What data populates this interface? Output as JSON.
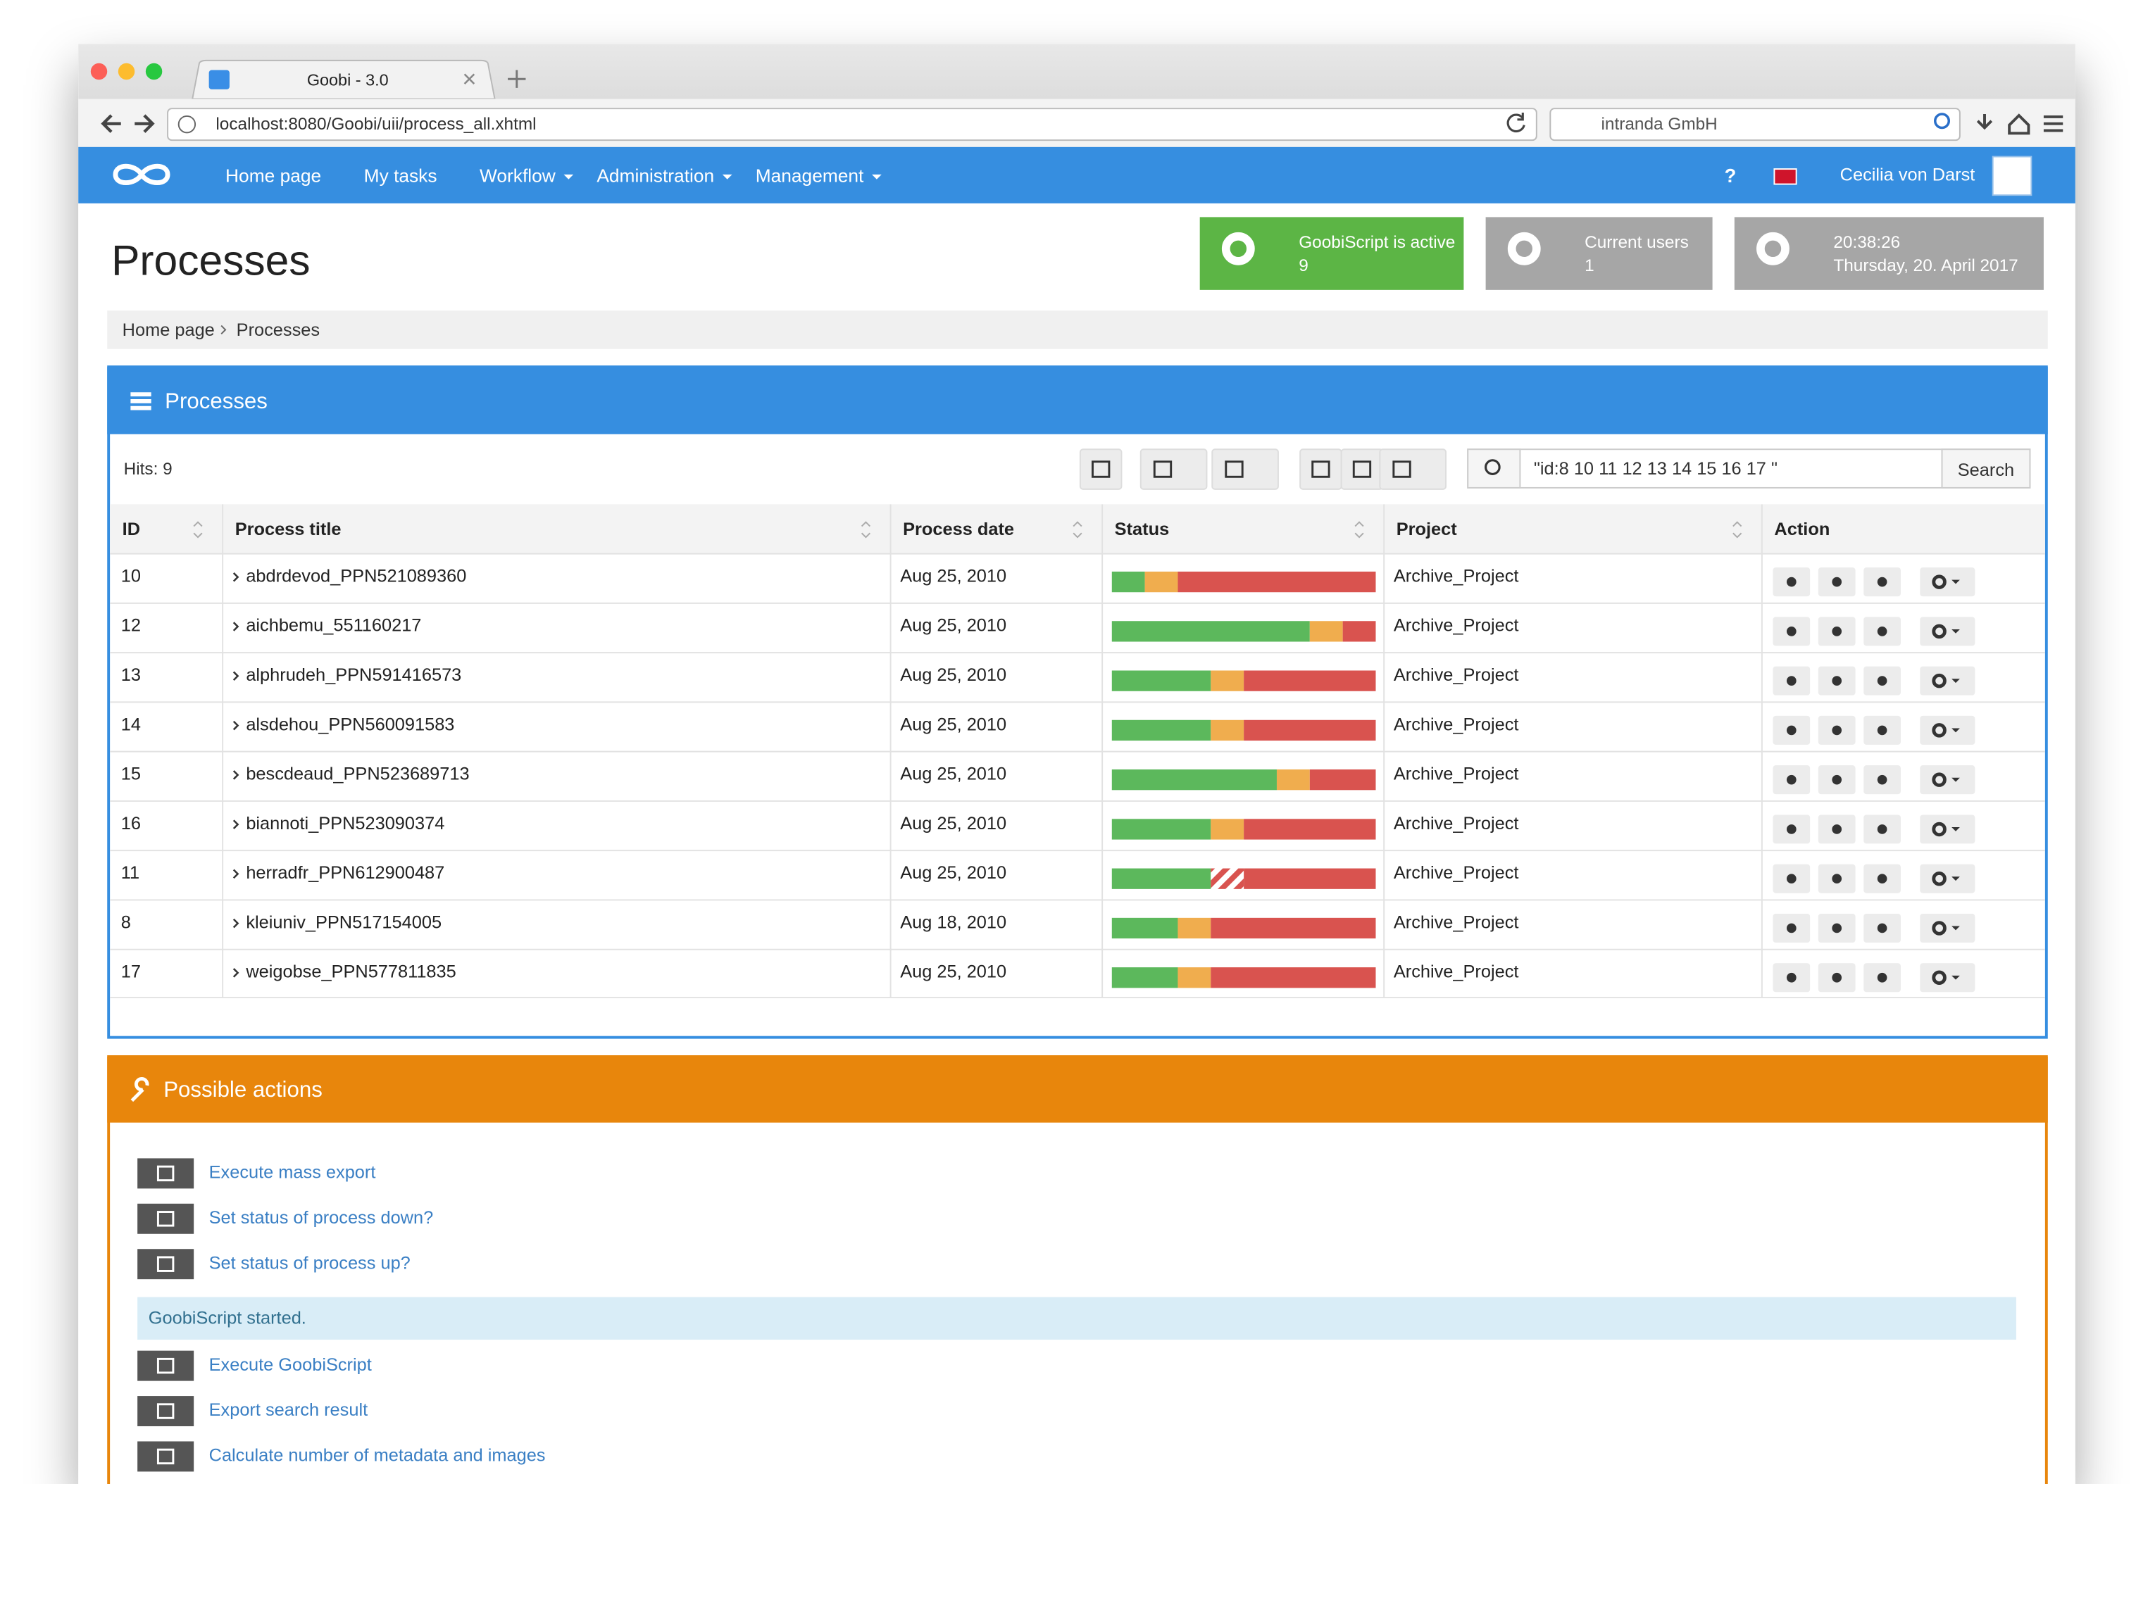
{
  "browser": {
    "tab_title": "Goobi - 3.0",
    "url": "localhost:8080/Goobi/uii/process_all.xhtml",
    "search": "intranda GmbH"
  },
  "nav": {
    "items": [
      {
        "label": "Home page"
      },
      {
        "label": "My tasks"
      },
      {
        "label": "Workflow",
        "menu": true
      },
      {
        "label": "Administration",
        "menu": true
      },
      {
        "label": "Management",
        "menu": true
      }
    ],
    "help": "?",
    "user": "Cecilia von Darst"
  },
  "widgets": [
    {
      "title": "GoobiScript is active",
      "value": 9,
      "color": "#5cb545"
    },
    {
      "title": "Current users",
      "value": 1,
      "color": "#a6a6a6"
    },
    {
      "title": "20:38:26",
      "value": "Thursday, 20. April 2017",
      "color": "#a6a6a6"
    }
  ],
  "page_title": "Processes",
  "breadcrumb": [
    "Home page",
    "Processes"
  ],
  "processes": {
    "title": "Processes",
    "hits": "Hits: 9",
    "query": "\"id:8 10 11 12 13 14 15 16 17 \"",
    "search_button": "Search",
    "columns": [
      "ID",
      "Process title",
      "Process date",
      "Status",
      "Project",
      "Action"
    ],
    "status_colors": [
      "#5cb85c",
      "#f0ad4e",
      "#d9534f"
    ],
    "rows": [
      {
        "id": 10,
        "title": "abdrdevod_PPN521089360",
        "date": "Aug 25, 2010",
        "status": [
          12.5,
          12.5,
          75
        ],
        "project": "Archive_Project"
      },
      {
        "id": 12,
        "title": "aichbemu_551160217",
        "date": "Aug 25, 2010",
        "status": [
          75,
          12.5,
          12.5
        ],
        "project": "Archive_Project"
      },
      {
        "id": 13,
        "title": "alphrudeh_PPN591416573",
        "date": "Aug 25, 2010",
        "status": [
          37.5,
          12.5,
          50
        ],
        "project": "Archive_Project"
      },
      {
        "id": 14,
        "title": "alsdehou_PPN560091583",
        "date": "Aug 25, 2010",
        "status": [
          37.5,
          12.5,
          50
        ],
        "project": "Archive_Project"
      },
      {
        "id": 15,
        "title": "bescdeaud_PPN523689713",
        "date": "Aug 25, 2010",
        "status": [
          62.5,
          12.5,
          25
        ],
        "project": "Archive_Project"
      },
      {
        "id": 16,
        "title": "biannoti_PPN523090374",
        "date": "Aug 25, 2010",
        "status": [
          37.5,
          12.5,
          50
        ],
        "project": "Archive_Project"
      },
      {
        "id": 11,
        "title": "herradfr_PPN612900487",
        "date": "Aug 25, 2010",
        "status": [
          37.5,
          12.5,
          50
        ],
        "status_style": "hatched",
        "project": "Archive_Project"
      },
      {
        "id": 8,
        "title": "kleiuniv_PPN517154005",
        "date": "Aug 18, 2010",
        "status": [
          25,
          12.5,
          62.5
        ],
        "project": "Archive_Project"
      },
      {
        "id": 17,
        "title": "weigobse_PPN577811835",
        "date": "Aug 25, 2010",
        "status": [
          25,
          12.5,
          62.5
        ],
        "project": "Archive_Project"
      }
    ]
  },
  "actions": {
    "title": "Possible actions",
    "items": [
      "Execute mass export",
      "Set status of process down?",
      "Set status of process up?"
    ],
    "message": "GoobiScript started.",
    "items2": [
      "Execute GoobiScript",
      "Export search result",
      "Calculate number of metadata and images"
    ]
  }
}
